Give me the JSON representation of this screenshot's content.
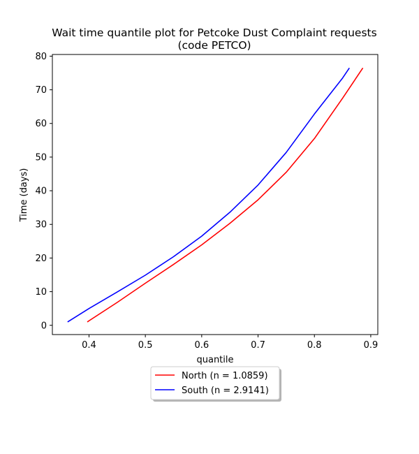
{
  "chart_data": {
    "type": "line",
    "title_line1": "Wait time quantile plot for Petcoke Dust Complaint  requests",
    "title_line2": "(code PETCO)",
    "xlabel": "quantile",
    "ylabel": "Time (days)",
    "xlim": [
      0.335,
      0.9125
    ],
    "ylim": [
      -2.75,
      80.5
    ],
    "xticks": [
      0.4,
      0.5,
      0.6,
      0.7,
      0.8,
      0.9
    ],
    "xtick_labels": [
      "0.4",
      "0.5",
      "0.6",
      "0.7",
      "0.8",
      "0.9"
    ],
    "yticks": [
      0,
      10,
      20,
      30,
      40,
      50,
      60,
      70,
      80
    ],
    "ytick_labels": [
      "0",
      "10",
      "20",
      "30",
      "40",
      "50",
      "60",
      "70",
      "80"
    ],
    "grid": false,
    "legend_position": "below-center",
    "series": [
      {
        "name": "North (n = 1.0859)",
        "color": "#ff0000",
        "x": [
          0.397,
          0.45,
          0.5,
          0.55,
          0.6,
          0.65,
          0.7,
          0.75,
          0.8,
          0.85,
          0.886
        ],
        "y": [
          1,
          6.8,
          12.5,
          18.1,
          23.9,
          30.3,
          37.3,
          45.5,
          55.5,
          67.5,
          76.5
        ]
      },
      {
        "name": "South (n = 2.9141)",
        "color": "#0000ff",
        "x": [
          0.362,
          0.4,
          0.45,
          0.5,
          0.55,
          0.6,
          0.65,
          0.7,
          0.75,
          0.8,
          0.85,
          0.862
        ],
        "y": [
          1,
          5,
          9.9,
          14.9,
          20.4,
          26.5,
          33.6,
          41.7,
          51.4,
          62.8,
          73.5,
          76.5
        ]
      }
    ]
  }
}
